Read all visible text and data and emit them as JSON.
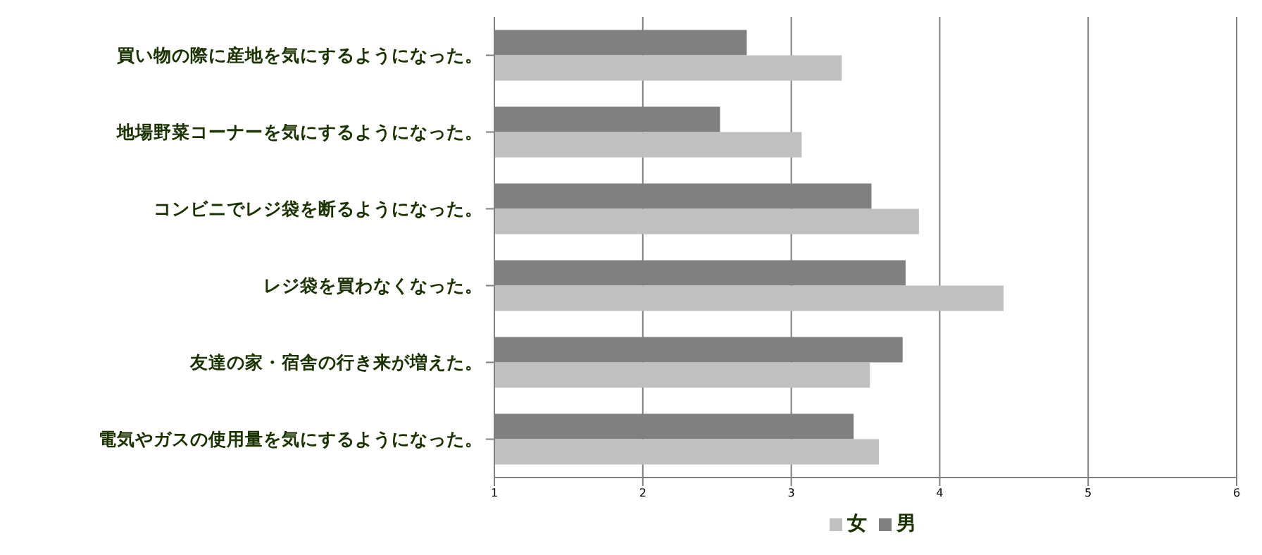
{
  "chart_data": {
    "type": "bar",
    "orientation": "horizontal",
    "categories": [
      "買い物の際に産地を気にするようになった。",
      "地場野菜コーナーを気にするようになった。",
      "コンビニでレジ袋を断るようになった。",
      "レジ袋を買わなくなった。",
      "友達の家・宿舎の行き来が増えた。",
      "電気やガスの使用量を気にするようになった。"
    ],
    "series": [
      {
        "name": "女",
        "color": "#c0c0c0",
        "values": [
          3.34,
          3.07,
          3.86,
          4.43,
          3.53,
          3.59
        ]
      },
      {
        "name": "男",
        "color": "#808080",
        "values": [
          2.7,
          2.52,
          3.54,
          3.77,
          3.75,
          3.42
        ]
      }
    ],
    "xlim": [
      1,
      6
    ],
    "xticks": [
      1,
      2,
      3,
      4,
      5,
      6
    ],
    "grid": "x",
    "legend": "bottom"
  }
}
